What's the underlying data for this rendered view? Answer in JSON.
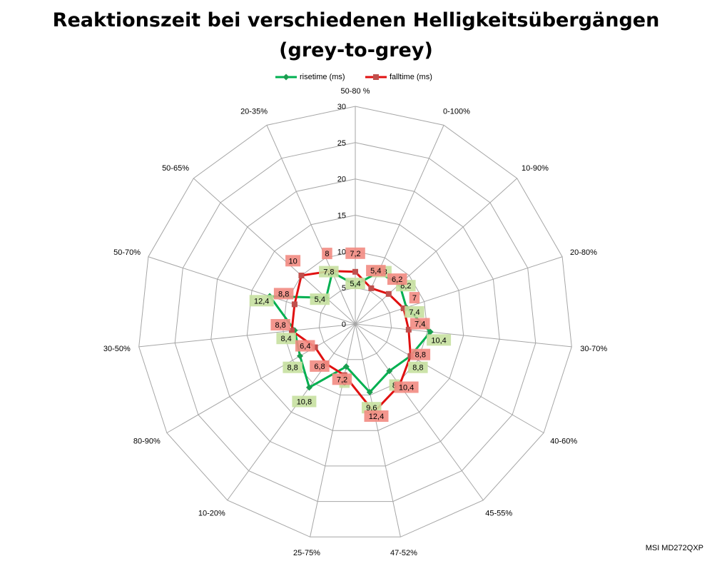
{
  "title": {
    "line1": "Reaktionszeit bei verschiedenen Helligkeitsübergängen",
    "line2": "(grey-to-grey)"
  },
  "legend": {
    "rise_label": "risetime (ms)",
    "fall_label": "falltime (ms)"
  },
  "watermark": "MSI MD272QXP",
  "colors": {
    "rise_line": "#00b050",
    "rise_marker": "#1a9d4f",
    "rise_label_bg": "#c6e0a0",
    "fall_line": "#e01010",
    "fall_marker": "#c0504d",
    "fall_label_bg": "#f28b82",
    "grid": "#a6a6a6"
  },
  "chart_data": {
    "type": "radar",
    "title": "Reaktionszeit bei verschiedenen Helligkeitsübergängen (grey-to-grey)",
    "categories": [
      "50-80 %",
      "0-100%",
      "10-90%",
      "20-80%",
      "30-70%",
      "40-60%",
      "45-55%",
      "47-52%",
      "25-75%",
      "10-20%",
      "80-90%",
      "30-50%",
      "50-70%",
      "50-65%",
      "20-35%"
    ],
    "radial_ticks": [
      0,
      5,
      10,
      15,
      20,
      25,
      30
    ],
    "rlim": [
      0,
      30
    ],
    "grid": true,
    "legend_position": "top",
    "series": [
      {
        "name": "risetime (ms)",
        "values": [
          5.4,
          7.8,
          8.2,
          7.4,
          10.4,
          8.8,
          8,
          9.6,
          6,
          10.8,
          8.8,
          8.4,
          12.4,
          5.4,
          7.8
        ],
        "labels": [
          "5,4",
          "7,8",
          "8,2",
          "7,4",
          "10,4",
          "8,8",
          "8",
          "9,6",
          "6",
          "10,8",
          "8,8",
          "8,4",
          "12,4",
          "5,4",
          "7,8"
        ]
      },
      {
        "name": "falltime (ms)",
        "values": [
          7.2,
          5.4,
          6.2,
          7,
          7.4,
          8.8,
          10.4,
          12.4,
          7.2,
          6.8,
          6.4,
          8.8,
          8.8,
          10,
          8
        ],
        "labels": [
          "7,2",
          "5,4",
          "6,2",
          "7",
          "7,4",
          "8,8",
          "10,4",
          "12,4",
          "7,2",
          "6,8",
          "6,4",
          "8,8",
          "8,8",
          "10",
          "8"
        ]
      }
    ]
  }
}
